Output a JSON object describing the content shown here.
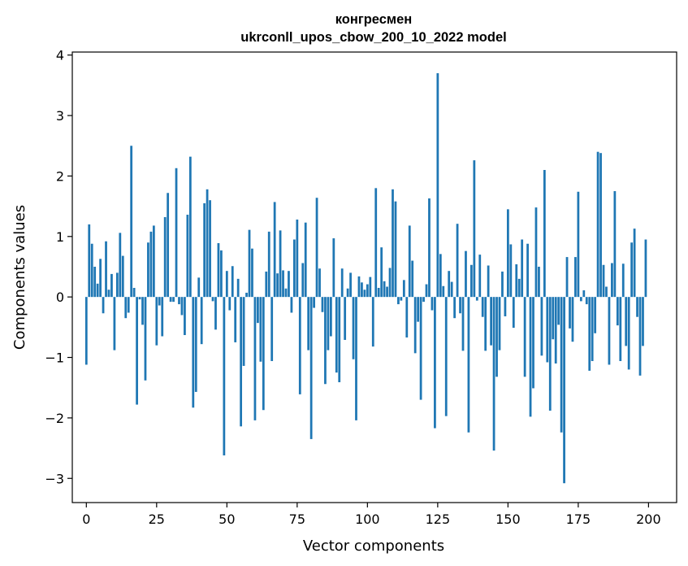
{
  "chart_data": {
    "type": "bar",
    "title": "конгресмен",
    "subtitle": "ukrconll_upos_cbow_200_10_2022 model",
    "xlabel": "Vector components",
    "ylabel": "Components values",
    "xlim": [
      -5,
      210
    ],
    "ylim": [
      -3.4,
      4.05
    ],
    "xticks": [
      0,
      25,
      50,
      75,
      100,
      125,
      150,
      175,
      200
    ],
    "yticks": [
      -3,
      -2,
      -1,
      0,
      1,
      2,
      3,
      4
    ],
    "xtick_labels": [
      "0",
      "25",
      "50",
      "75",
      "100",
      "125",
      "150",
      "175",
      "200"
    ],
    "ytick_labels": [
      "−3",
      "−2",
      "−1",
      "0",
      "1",
      "2",
      "3",
      "4"
    ],
    "grid": false,
    "bar_color": "#1f77b4",
    "values": [
      -1.12,
      1.2,
      0.88,
      0.5,
      0.22,
      0.63,
      -0.27,
      0.92,
      0.12,
      0.38,
      -0.88,
      0.4,
      1.06,
      0.68,
      -0.35,
      -0.26,
      2.5,
      0.15,
      -1.78,
      -0.04,
      -0.46,
      -1.38,
      0.9,
      1.08,
      1.18,
      -0.8,
      -0.14,
      -0.65,
      1.32,
      1.72,
      -0.08,
      -0.08,
      2.13,
      -0.12,
      -0.3,
      -0.63,
      1.36,
      2.32,
      -1.83,
      -1.57,
      0.32,
      -0.78,
      1.55,
      1.78,
      1.6,
      -0.07,
      -0.54,
      0.89,
      0.77,
      -2.62,
      0.43,
      -0.22,
      0.51,
      -0.75,
      0.3,
      -2.14,
      -1.14,
      0.07,
      1.11,
      0.8,
      -2.04,
      -0.43,
      -1.07,
      -1.87,
      0.42,
      1.08,
      -1.06,
      1.57,
      0.39,
      1.1,
      0.44,
      0.14,
      0.43,
      -0.26,
      0.95,
      1.28,
      -1.61,
      0.56,
      1.23,
      -0.88,
      -2.35,
      -0.18,
      1.64,
      0.47,
      -0.25,
      -1.44,
      -0.88,
      -0.65,
      0.97,
      -1.25,
      -1.41,
      0.47,
      -0.71,
      0.14,
      0.4,
      -1.03,
      -2.04,
      0.34,
      0.24,
      0.12,
      0.21,
      0.33,
      -0.82,
      1.8,
      0.15,
      0.82,
      0.26,
      0.17,
      0.48,
      1.78,
      1.58,
      -0.12,
      -0.06,
      0.28,
      -0.67,
      1.18,
      0.6,
      -0.93,
      -0.41,
      -1.7,
      -0.08,
      0.21,
      1.63,
      -0.22,
      -2.17,
      3.7,
      0.71,
      0.18,
      -1.97,
      0.43,
      0.25,
      -0.35,
      1.21,
      -0.27,
      -0.89,
      0.76,
      -2.24,
      0.53,
      2.26,
      -0.06,
      0.7,
      -0.33,
      -0.89,
      0.52,
      -0.8,
      -2.54,
      -1.32,
      -0.88,
      0.42,
      -0.32,
      1.45,
      0.87,
      -0.51,
      0.54,
      0.3,
      0.95,
      -1.32,
      0.88,
      -1.98,
      -1.51,
      1.48,
      0.5,
      -0.97,
      2.1,
      -1.08,
      -1.88,
      -0.7,
      -1.1,
      -0.46,
      -2.24,
      -3.08,
      0.66,
      -0.52,
      -0.74,
      0.66,
      1.74,
      -0.07,
      0.11,
      -0.12,
      -1.22,
      -1.06,
      -0.6,
      2.4,
      2.38,
      0.53,
      0.17,
      -1.12,
      0.56,
      1.75,
      -0.47,
      -1.06,
      0.55,
      -0.81,
      -1.2,
      0.9,
      1.13,
      -0.33,
      -1.3,
      -0.81,
      0.95
    ]
  }
}
